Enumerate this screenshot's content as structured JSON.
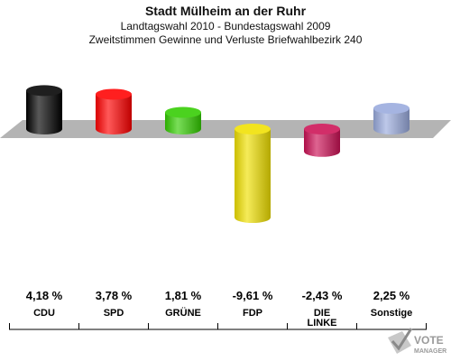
{
  "header": {
    "title": "Stadt Mülheim an der Ruhr",
    "subtitle_1": "Landtagswahl 2010 - Bundestagswahl 2009",
    "subtitle_2": "Zweitstimmen Gewinne und Verluste Briefwahlbezirk 240"
  },
  "logo": {
    "line1": "VOTE",
    "line2": "MANAGER"
  },
  "chart_data": {
    "type": "bar",
    "categories": [
      "CDU",
      "SPD",
      "GRÜNE",
      "FDP",
      "DIE LINKE",
      "Sonstige"
    ],
    "category_lines": [
      [
        "CDU"
      ],
      [
        "SPD"
      ],
      [
        "GRÜNE"
      ],
      [
        "FDP"
      ],
      [
        "DIE",
        "LINKE"
      ],
      [
        "Sonstige"
      ]
    ],
    "values": [
      4.18,
      3.78,
      1.81,
      -9.61,
      -2.43,
      2.25
    ],
    "value_labels": [
      "4,18 %",
      "3,78 %",
      "1,81 %",
      "-9,61 %",
      "-2,43 %",
      "2,25 %"
    ],
    "colors": [
      "#000000",
      "#ff0000",
      "#33cc00",
      "#f0e000",
      "#cc1155",
      "#99aadd"
    ],
    "ylim": [
      -10,
      5
    ],
    "grid": false
  }
}
